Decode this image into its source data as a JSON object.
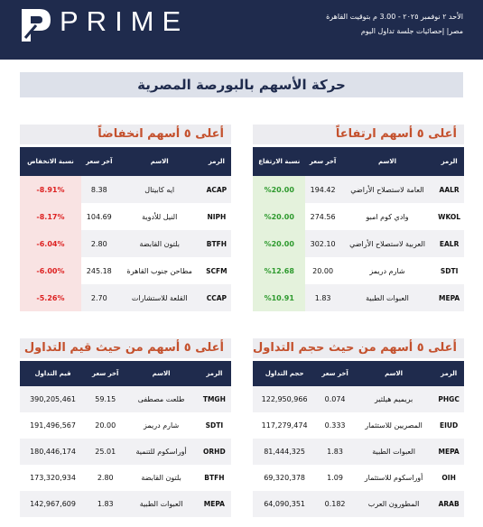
{
  "header": {
    "logo": "PRIME",
    "date": "الأحد ٢ نوفمبر ٢٠٢٥ - 3.00 م بتوقيت القاهرة",
    "subtitle": "مصر| إحصائيات جلسة تداول اليوم"
  },
  "title": "حركة الأسهم بالبورصة المصرية",
  "panels": [
    {
      "title": "أعلى ٥ أسهم ارتفاعاً",
      "kind": "up",
      "columns": [
        "الرمز",
        "الاسم",
        "آخر سعر",
        "نسبة الارتفاع"
      ],
      "rows": [
        [
          "AALR",
          "العامة لاستصلاح الأراضي",
          "194.42",
          "%20.00"
        ],
        [
          "WKOL",
          "وادي كوم امبو",
          "274.56",
          "%20.00"
        ],
        [
          "EALR",
          "العربية لاستصلاح الأراضي",
          "302.10",
          "%20.00"
        ],
        [
          "SDTI",
          "شارم دريمز",
          "20.00",
          "%12.68"
        ],
        [
          "MEPA",
          "العبوات الطبية",
          "1.83",
          "%10.91"
        ]
      ]
    },
    {
      "title": "أعلى ٥ أسهم انخفاضاً",
      "kind": "down",
      "columns": [
        "الرمز",
        "الاسم",
        "آخر سعر",
        "نسبة الانخفاض"
      ],
      "rows": [
        [
          "ACAP",
          "ايه كابيتال",
          "8.38",
          "-8.91%"
        ],
        [
          "NIPH",
          "النيل للأدوية",
          "104.69",
          "-8.17%"
        ],
        [
          "BTFH",
          "بلتون القابضة",
          "2.80",
          "-6.04%"
        ],
        [
          "SCFM",
          "مطاحن جنوب القاهرة",
          "245.18",
          "-6.00%"
        ],
        [
          "CCAP",
          "القلعة للاستشارات",
          "2.70",
          "-5.26%"
        ]
      ]
    },
    {
      "title": "أعلى ٥ أسهم من حيث حجم التداول",
      "kind": "plain",
      "columns": [
        "الرمز",
        "الاسم",
        "آخر سعر",
        "حجم التداول"
      ],
      "rows": [
        [
          "PHGC",
          "بريميم هيلثير",
          "0.074",
          "122,950,966"
        ],
        [
          "EIUD",
          "المصريين للاستثمار",
          "0.333",
          "117,279,474"
        ],
        [
          "MEPA",
          "العبوات الطبية",
          "1.83",
          "81,444,325"
        ],
        [
          "OIH",
          "أوراسكوم للاستثمار",
          "1.09",
          "69,320,378"
        ],
        [
          "ARAB",
          "المطورون العرب",
          "0.182",
          "64,090,351"
        ]
      ]
    },
    {
      "title": "أعلى ٥ أسهم من حيث قيم التداول",
      "kind": "plain",
      "columns": [
        "الرمز",
        "الاسم",
        "آخر سعر",
        "قيم التداول"
      ],
      "rows": [
        [
          "TMGH",
          "طلعت مصطفى",
          "59.15",
          "390,205,461"
        ],
        [
          "SDTI",
          "شارم دريمز",
          "20.00",
          "191,496,567"
        ],
        [
          "ORHD",
          "أوراسكوم للتنمية",
          "25.01",
          "180,446,174"
        ],
        [
          "BTFH",
          "بلتون القابضة",
          "2.80",
          "173,320,934"
        ],
        [
          "MEPA",
          "العبوات الطبية",
          "1.83",
          "142,967,609"
        ]
      ]
    }
  ]
}
